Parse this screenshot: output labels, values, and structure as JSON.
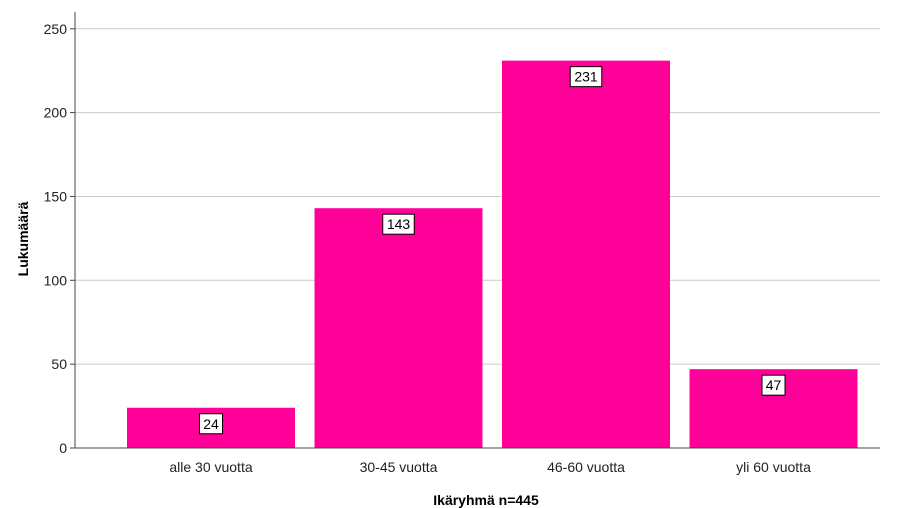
{
  "chart_data": {
    "type": "bar",
    "categories": [
      "alle 30 vuotta",
      "30-45 vuotta",
      "46-60 vuotta",
      "yli 60 vuotta"
    ],
    "values": [
      24,
      143,
      231,
      47
    ],
    "data_labels": [
      "24",
      "143",
      "231",
      "47"
    ],
    "title": "",
    "xlabel": "Ikäryhmä n=445",
    "ylabel": "Lukumäärä",
    "ylim": [
      0,
      260
    ],
    "yticks": [
      0,
      50,
      100,
      150,
      200,
      250
    ],
    "ytick_labels": [
      "0",
      "50",
      "100",
      "150",
      "200",
      "250"
    ],
    "grid": "horizontal",
    "legend": "none",
    "bar_color": "#ff0099",
    "grid_color": "#cccccc",
    "axis_color": "#444444"
  }
}
